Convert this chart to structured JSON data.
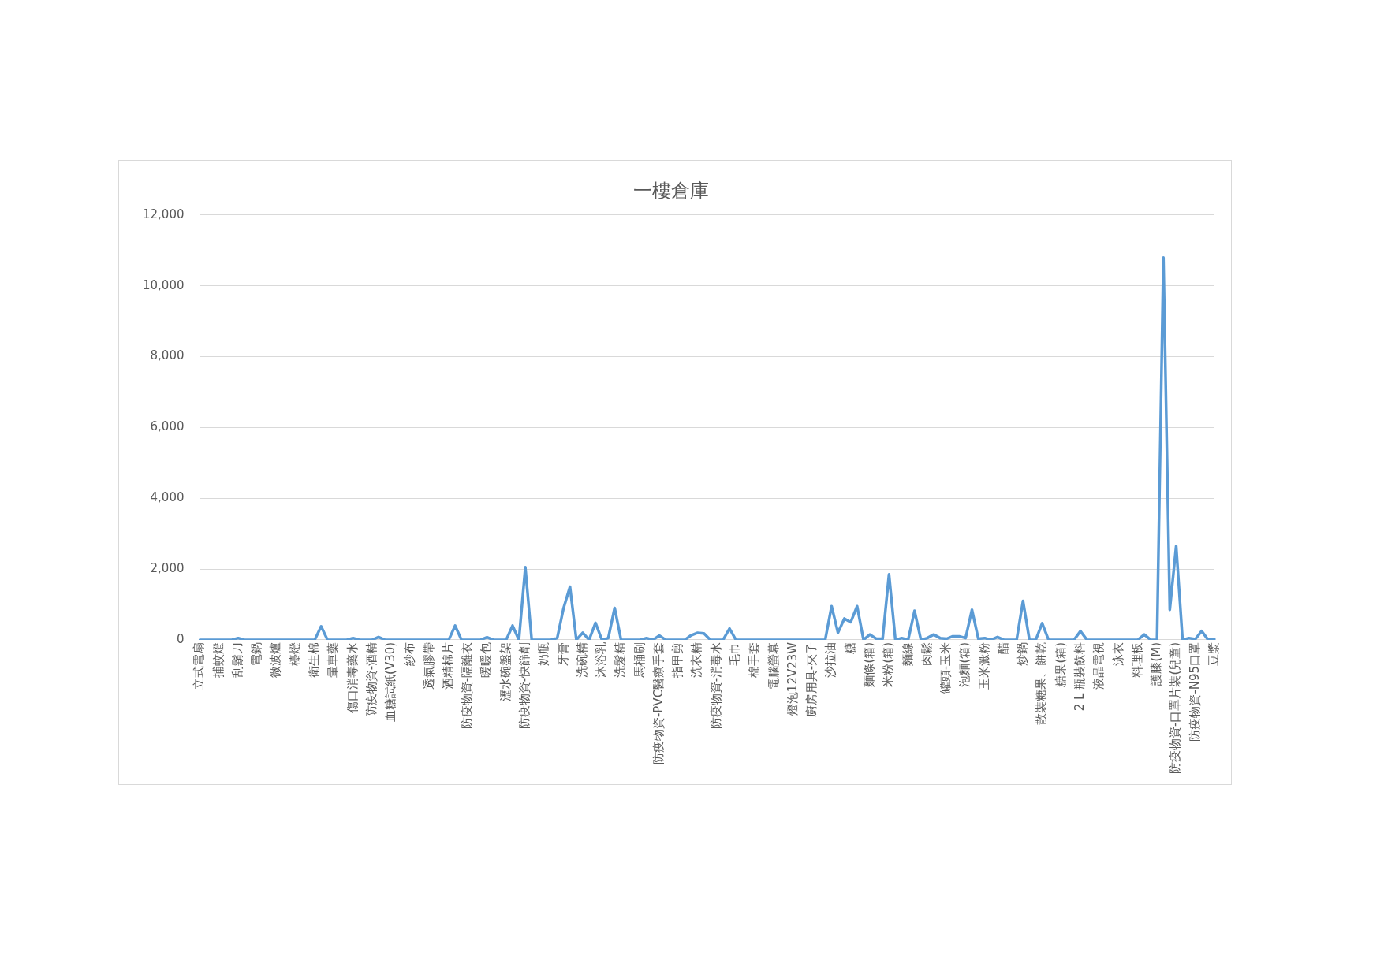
{
  "chart_data": {
    "type": "line",
    "title": "一樓倉庫",
    "categories": [
      "立式電扇",
      null,
      null,
      "捕蚊燈",
      null,
      null,
      "刮鬍刀",
      null,
      null,
      "電鍋",
      null,
      null,
      "微波爐",
      null,
      null,
      "檯燈",
      null,
      null,
      "衛生棉",
      null,
      null,
      "暈車藥",
      null,
      null,
      "傷口消毒藥水",
      null,
      null,
      "防疫物資-酒精",
      null,
      null,
      "血糖試紙(V30)",
      null,
      null,
      "紗布",
      null,
      null,
      "透氣膠帶",
      null,
      null,
      "酒精棉片",
      null,
      null,
      "防疫物資-隔離衣",
      null,
      null,
      "暖暖包",
      null,
      null,
      "瀝水碗盤架",
      null,
      null,
      "防疫物資-快篩劑",
      null,
      null,
      "奶瓶",
      null,
      null,
      "牙膏",
      null,
      null,
      "洗碗精",
      null,
      null,
      "沐浴乳",
      null,
      null,
      "洗髮精",
      null,
      null,
      "馬桶刷",
      null,
      null,
      "防疫物資-PVC醫療手套",
      null,
      null,
      "指甲剪",
      null,
      null,
      "洗衣精",
      null,
      null,
      "防疫物資-消毒水",
      null,
      null,
      "毛巾",
      null,
      null,
      "棉手套",
      null,
      null,
      "電腦螢幕",
      null,
      null,
      "燈泡12V23W",
      null,
      null,
      "廚房用具-夾子",
      null,
      null,
      "沙拉油",
      null,
      null,
      "糖",
      null,
      null,
      "麵條(箱)",
      null,
      null,
      "米粉(箱)",
      null,
      null,
      "麵線",
      null,
      null,
      "肉鬆",
      null,
      null,
      "罐頭-玉米",
      null,
      null,
      "泡麵(箱)",
      null,
      null,
      "玉米澱粉",
      null,
      null,
      "醋",
      null,
      null,
      "炒鍋",
      null,
      null,
      "散裝糖果、餅乾",
      null,
      null,
      "糖果(箱)",
      null,
      null,
      "2 L 瓶裝飲料",
      null,
      null,
      "液晶電視",
      null,
      null,
      "泳衣",
      null,
      null,
      "料理板",
      null,
      null,
      "護膝(M)",
      null,
      null,
      "防疫物資-口罩片裝(兒童)",
      null,
      null,
      "防疫物資-N95口罩",
      null,
      null,
      "豆漿"
    ],
    "series": [
      {
        "color": "#5b9bd5",
        "values": [
          0,
          0,
          0,
          0,
          0,
          0,
          50,
          0,
          0,
          0,
          0,
          0,
          0,
          0,
          0,
          0,
          0,
          0,
          0,
          380,
          0,
          0,
          0,
          0,
          50,
          0,
          0,
          0,
          80,
          0,
          0,
          0,
          0,
          0,
          0,
          0,
          0,
          0,
          0,
          0,
          400,
          0,
          0,
          0,
          0,
          70,
          0,
          0,
          0,
          400,
          0,
          2050,
          0,
          0,
          0,
          0,
          50,
          900,
          1500,
          0,
          200,
          0,
          480,
          0,
          50,
          900,
          0,
          0,
          0,
          0,
          50,
          0,
          120,
          0,
          0,
          0,
          0,
          130,
          200,
          180,
          0,
          0,
          0,
          320,
          0,
          0,
          0,
          0,
          0,
          0,
          0,
          0,
          0,
          0,
          0,
          0,
          0,
          0,
          0,
          950,
          200,
          600,
          500,
          950,
          0,
          150,
          30,
          30,
          1850,
          0,
          50,
          0,
          820,
          0,
          50,
          150,
          50,
          30,
          100,
          100,
          50,
          850,
          30,
          50,
          0,
          80,
          0,
          0,
          0,
          1100,
          0,
          0,
          470,
          0,
          0,
          0,
          0,
          0,
          250,
          0,
          0,
          0,
          0,
          0,
          0,
          0,
          0,
          0,
          150,
          0,
          0,
          10800,
          850,
          2650,
          0,
          50,
          20,
          250,
          0,
          20
        ]
      }
    ],
    "ylim": [
      0,
      12000
    ],
    "yticks": [
      0,
      {
        "value": 2000,
        "label": "2,000"
      },
      {
        "value": 4000,
        "label": "4,000"
      },
      {
        "value": 6000,
        "label": "6,000"
      },
      {
        "value": 8000,
        "label": "8,000"
      },
      {
        "value": 10000,
        "label": "10,000"
      },
      {
        "value": 12000,
        "label": "12,000"
      }
    ],
    "grid": "y",
    "marker": "none",
    "line_style": "solid"
  }
}
